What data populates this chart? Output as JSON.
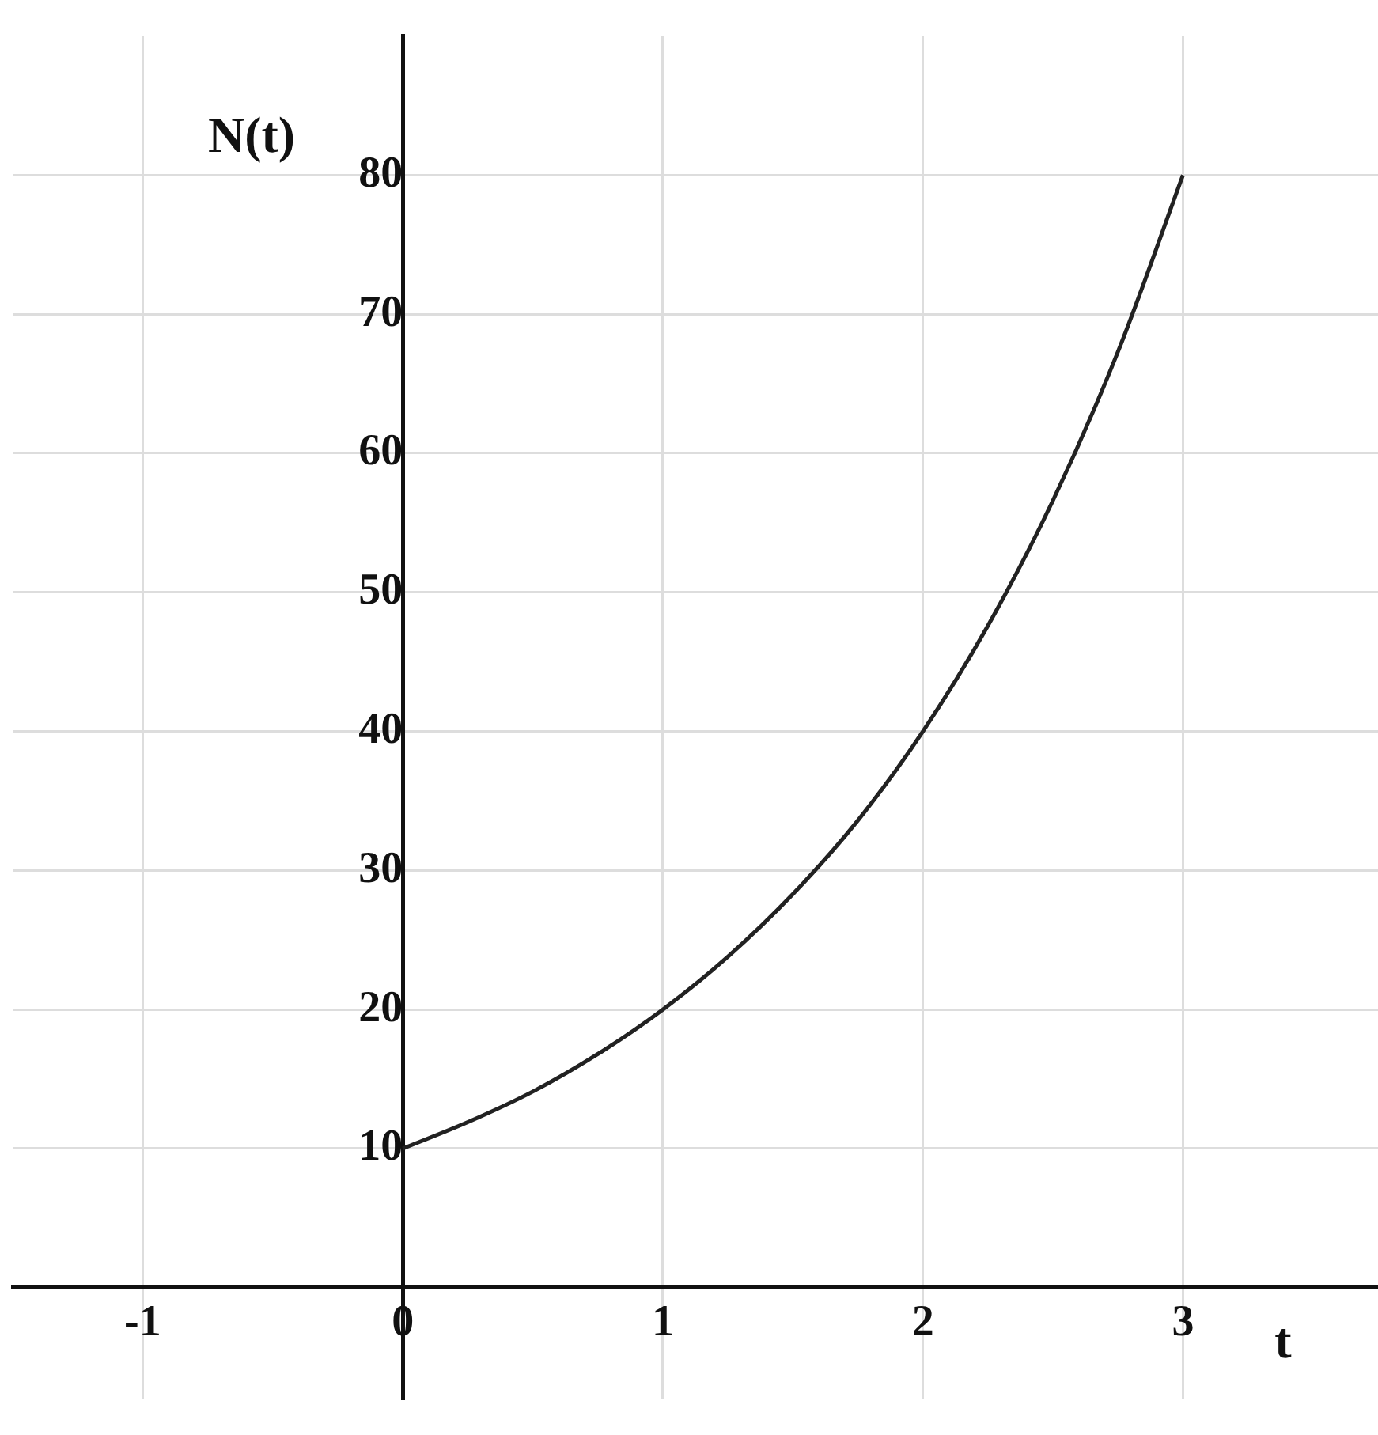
{
  "chart_data": {
    "type": "line",
    "xlabel": "t",
    "ylabel": "N(t)",
    "x": [
      0,
      0.25,
      0.5,
      0.75,
      1,
      1.25,
      1.5,
      1.75,
      2,
      2.25,
      2.5,
      2.75,
      3
    ],
    "series": [
      {
        "color": "#222222",
        "values": [
          10,
          11.9,
          14.1,
          16.8,
          20,
          23.8,
          28.3,
          33.6,
          40,
          47.6,
          56.6,
          67.3,
          80
        ]
      }
    ],
    "xlim": [
      -1.5,
      3.75
    ],
    "ylim": [
      -8,
      90
    ],
    "xticks": [
      -1,
      0,
      1,
      2,
      3
    ],
    "yticks": [
      10,
      20,
      30,
      40,
      50,
      60,
      70,
      80
    ],
    "grid": true,
    "legend": false,
    "marker": "none",
    "line_style": "solid"
  }
}
